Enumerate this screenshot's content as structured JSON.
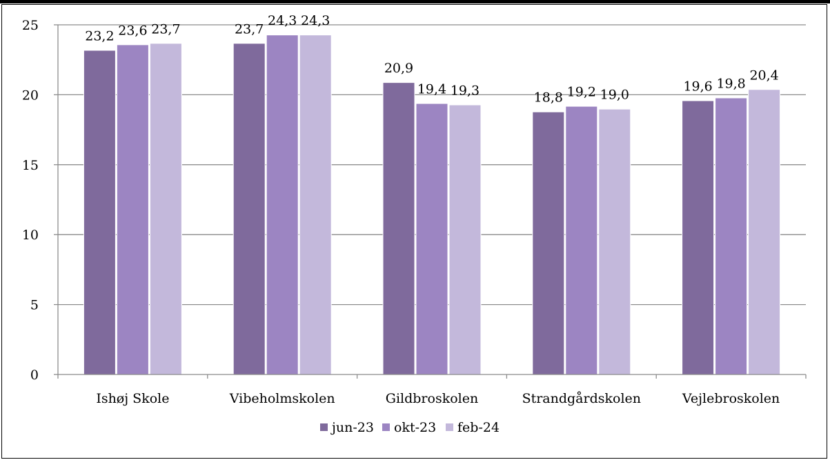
{
  "chart_data": {
    "type": "bar",
    "title": "",
    "xlabel": "",
    "ylabel": "",
    "categories": [
      "Ishøj Skole",
      "Vibeholmskolen",
      "Gildbroskolen",
      "Strandgårdskolen",
      "Vejlebroskolen"
    ],
    "series": [
      {
        "name": "jun-23",
        "values": [
          23.2,
          23.7,
          20.9,
          18.8,
          19.6
        ],
        "labels": [
          "23,2",
          "23,7",
          "20,9",
          "18,8",
          "19,6"
        ],
        "color": "#7f6a9c"
      },
      {
        "name": "okt-23",
        "values": [
          23.6,
          24.3,
          19.4,
          19.2,
          19.8
        ],
        "labels": [
          "23,6",
          "24,3",
          "19,4",
          "19,2",
          "19,8"
        ],
        "color": "#9c85c2"
      },
      {
        "name": "feb-24",
        "values": [
          23.7,
          24.3,
          19.3,
          19.0,
          20.4
        ],
        "labels": [
          "23,7",
          "24,3",
          "19,3",
          "19,0",
          "20,4"
        ],
        "color": "#c3b8db"
      }
    ],
    "ylim": [
      0,
      25
    ],
    "yticks": [
      0,
      5,
      10,
      15,
      20,
      25
    ],
    "grid": true,
    "legend_position": "bottom"
  }
}
